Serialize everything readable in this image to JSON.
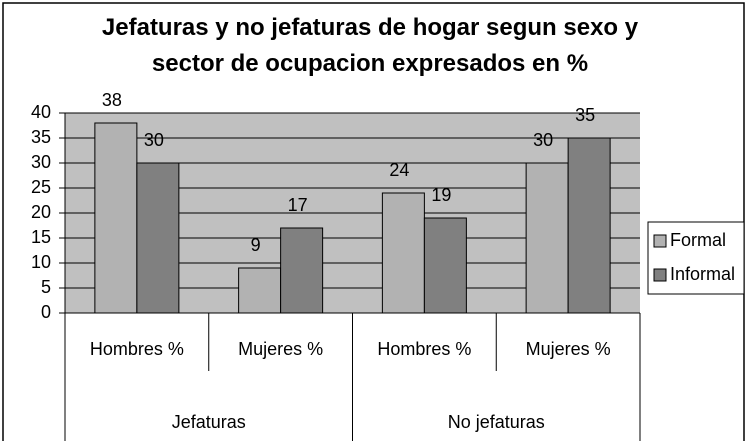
{
  "chart_data": {
    "type": "bar",
    "title": "Jefaturas y no jefaturas de hogar segun sexo y sector de ocupacion expresados en %",
    "categories": [
      "Hombres %",
      "Mujeres %",
      "Hombres %",
      "Mujeres %"
    ],
    "groups": [
      "Jefaturas",
      "No jefaturas"
    ],
    "series": [
      {
        "name": "Formal",
        "color": "#b2b2b2",
        "values": [
          38,
          9,
          24,
          30
        ]
      },
      {
        "name": "Informal",
        "color": "#808080",
        "values": [
          30,
          17,
          19,
          35
        ]
      }
    ],
    "ylim": [
      0,
      40
    ],
    "yticks": [
      0,
      5,
      10,
      15,
      20,
      25,
      30,
      35,
      40
    ],
    "grid": true,
    "plot_background": "#c0c0c0",
    "legend": "right"
  }
}
